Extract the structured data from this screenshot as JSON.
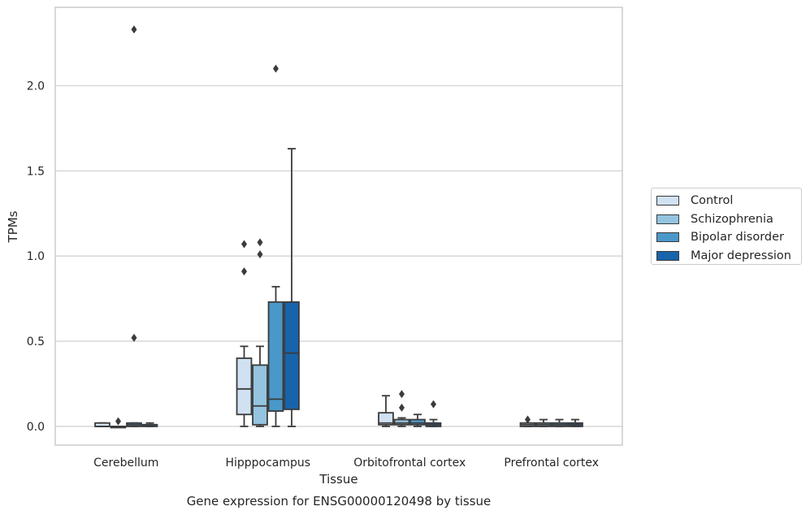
{
  "chart_data": {
    "type": "box",
    "title": "Gene expression for ENSG00000120498 by tissue",
    "xlabel": "Tissue",
    "ylabel": "TPMs",
    "ylim": [
      -0.11,
      2.46
    ],
    "yticks": [
      0.0,
      0.5,
      1.0,
      1.5,
      2.0
    ],
    "ytick_labels": [
      "0.0",
      "0.5",
      "1.0",
      "1.5",
      "2.0"
    ],
    "grid": "horizontal",
    "legend_position": "right",
    "categories": [
      "Cerebellum",
      "Hipppocampus",
      "Orbitofrontal cortex",
      "Prefrontal cortex"
    ],
    "series": [
      {
        "name": "Control",
        "color": "#d0e1f2",
        "boxes": [
          {
            "q1": 0.0,
            "median": 0.0,
            "q3": 0.02,
            "whislo": 0.0,
            "whishi": 0.02,
            "fliers": []
          },
          {
            "q1": 0.07,
            "median": 0.22,
            "q3": 0.4,
            "whislo": 0.0,
            "whishi": 0.47,
            "fliers": [
              0.91,
              1.07
            ]
          },
          {
            "q1": 0.01,
            "median": 0.02,
            "q3": 0.08,
            "whislo": 0.0,
            "whishi": 0.18,
            "fliers": []
          },
          {
            "q1": 0.0,
            "median": 0.01,
            "q3": 0.02,
            "whislo": 0.0,
            "whishi": 0.02,
            "fliers": [
              0.04
            ]
          }
        ]
      },
      {
        "name": "Schizophrenia",
        "color": "#94c4df",
        "boxes": [
          {
            "q1": 0.0,
            "median": 0.0,
            "q3": 0.0,
            "whislo": 0.0,
            "whishi": 0.0,
            "fliers": [
              0.03
            ]
          },
          {
            "q1": 0.01,
            "median": 0.12,
            "q3": 0.36,
            "whislo": 0.0,
            "whishi": 0.47,
            "fliers": [
              1.01,
              1.08
            ]
          },
          {
            "q1": 0.01,
            "median": 0.02,
            "q3": 0.04,
            "whislo": 0.0,
            "whishi": 0.05,
            "fliers": [
              0.11,
              0.19
            ]
          },
          {
            "q1": 0.0,
            "median": 0.01,
            "q3": 0.02,
            "whislo": 0.0,
            "whishi": 0.04,
            "fliers": []
          }
        ]
      },
      {
        "name": "Bipolar disorder",
        "color": "#4a98c9",
        "boxes": [
          {
            "q1": 0.0,
            "median": 0.01,
            "q3": 0.02,
            "whislo": 0.0,
            "whishi": 0.02,
            "fliers": [
              0.52,
              2.33
            ]
          },
          {
            "q1": 0.09,
            "median": 0.16,
            "q3": 0.73,
            "whislo": 0.0,
            "whishi": 0.82,
            "fliers": [
              2.1
            ]
          },
          {
            "q1": 0.01,
            "median": 0.02,
            "q3": 0.04,
            "whislo": 0.0,
            "whishi": 0.07,
            "fliers": []
          },
          {
            "q1": 0.0,
            "median": 0.01,
            "q3": 0.02,
            "whislo": 0.0,
            "whishi": 0.04,
            "fliers": []
          }
        ]
      },
      {
        "name": "Major depression",
        "color": "#1764ab",
        "boxes": [
          {
            "q1": 0.0,
            "median": 0.01,
            "q3": 0.01,
            "whislo": 0.0,
            "whishi": 0.02,
            "fliers": []
          },
          {
            "q1": 0.1,
            "median": 0.43,
            "q3": 0.73,
            "whislo": 0.0,
            "whishi": 1.63,
            "fliers": []
          },
          {
            "q1": 0.0,
            "median": 0.01,
            "q3": 0.02,
            "whislo": 0.0,
            "whishi": 0.04,
            "fliers": [
              0.13
            ]
          },
          {
            "q1": 0.0,
            "median": 0.01,
            "q3": 0.02,
            "whislo": 0.0,
            "whishi": 0.04,
            "fliers": []
          }
        ]
      }
    ]
  }
}
